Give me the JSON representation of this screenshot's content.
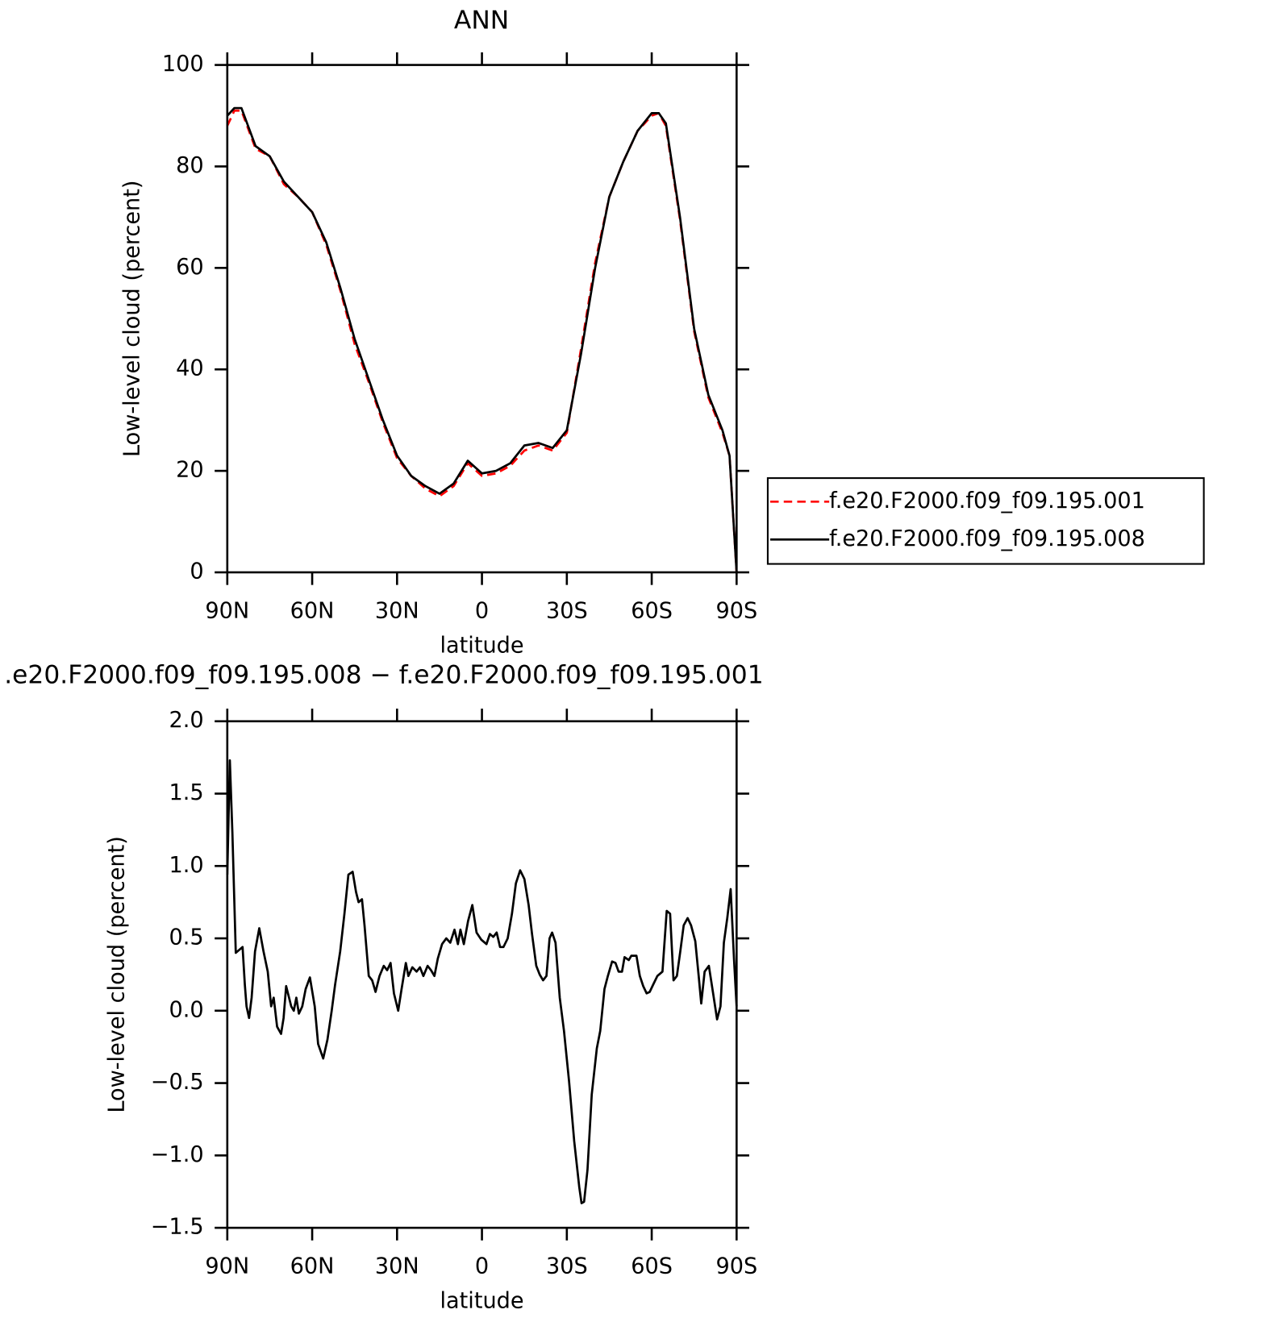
{
  "chart_data": [
    {
      "type": "line",
      "title": "ANN",
      "x_label": "latitude",
      "y_label": "Low-level cloud (percent)",
      "x": [
        90,
        87.5,
        85,
        80,
        75,
        70,
        65,
        60,
        55,
        50,
        45,
        40,
        35,
        30,
        25,
        20,
        15,
        10,
        5,
        0,
        -5,
        -10,
        -15,
        -20,
        -25,
        -30,
        -35,
        -40,
        -45,
        -50,
        -55,
        -60,
        -62.5,
        -65,
        -70,
        -75,
        -80,
        -85,
        -87.5,
        -90
      ],
      "series": [
        {
          "name": "f.e20.F2000.f09_f09.195.001",
          "color": "#ff0000",
          "dash": "dashed",
          "values": [
            88,
            91,
            91,
            83.5,
            82,
            76.5,
            74,
            71,
            64.5,
            55.5,
            45,
            37.5,
            29.5,
            22.5,
            19,
            16.5,
            15,
            17,
            21.5,
            19,
            19.5,
            21,
            24,
            25,
            24,
            27.5,
            44,
            61,
            74,
            81,
            87,
            90,
            90.5,
            88,
            69.5,
            47.5,
            34.5,
            27.5,
            23,
            0
          ]
        },
        {
          "name": "f.e20.F2000.f09_f09.195.008",
          "color": "#000000",
          "dash": "solid",
          "values": [
            90,
            91.5,
            91.5,
            84,
            82,
            77,
            74,
            71,
            65,
            56,
            46,
            38,
            30,
            23,
            19,
            17,
            15.5,
            17.5,
            22,
            19.5,
            20,
            21.5,
            25,
            25.5,
            24.5,
            28,
            43,
            60,
            74,
            81,
            87,
            90.5,
            90.5,
            88.5,
            70,
            48,
            35,
            28,
            23,
            0
          ]
        }
      ],
      "xlim": [
        90,
        -90
      ],
      "xticks": [
        {
          "value": 90,
          "label": "90N"
        },
        {
          "value": 60,
          "label": "60N"
        },
        {
          "value": 30,
          "label": "30N"
        },
        0,
        {
          "value": -30,
          "label": "30S"
        },
        {
          "value": -60,
          "label": "60S"
        },
        {
          "value": -90,
          "label": "90S"
        }
      ],
      "ylim": [
        0,
        100
      ],
      "yticks": [
        0,
        20,
        40,
        60,
        80,
        100
      ],
      "legend": "right"
    },
    {
      "type": "line",
      "title": ".e20.F2000.f09_f09.195.008 − f.e20.F2000.f09_f09.195.001",
      "x_label": "latitude",
      "y_label": "Low-level cloud (percent)",
      "x": [
        90,
        89.1,
        88.2,
        87.0,
        85.8,
        84.6,
        83.8,
        83.2,
        82.3,
        81.4,
        80.2,
        78.7,
        77.2,
        75.7,
        74.5,
        73.6,
        72.4,
        71.0,
        70.1,
        69.2,
        67.4,
        66.5,
        65.6,
        64.7,
        63.5,
        62.3,
        60.8,
        59.1,
        57.9,
        56.1,
        54.6,
        53.1,
        51.9,
        50.1,
        48.6,
        47.2,
        45.7,
        44.5,
        43.6,
        42.4,
        41.5,
        40.0,
        38.8,
        37.6,
        36.2,
        34.7,
        33.5,
        32.3,
        31.1,
        29.6,
        28.4,
        26.9,
        26.0,
        24.6,
        23.1,
        21.9,
        20.7,
        19.2,
        18.0,
        16.8,
        15.6,
        14.1,
        12.6,
        11.2,
        9.7,
        8.5,
        7.6,
        6.4,
        4.9,
        3.4,
        1.9,
        0.2,
        -1.6,
        -2.8,
        -4.0,
        -5.2,
        -6.4,
        -7.6,
        -9.1,
        -10.6,
        -12.0,
        -13.5,
        -15.0,
        -16.5,
        -17.7,
        -19.2,
        -20.4,
        -21.6,
        -22.8,
        -23.9,
        -24.8,
        -26.0,
        -27.5,
        -29.0,
        -30.8,
        -32.6,
        -34.4,
        -35.2,
        -36.1,
        -37.3,
        -38.8,
        -40.6,
        -41.8,
        -43.3,
        -44.5,
        -46.0,
        -47.2,
        -48.3,
        -49.5,
        -50.4,
        -51.9,
        -52.8,
        -54.6,
        -55.8,
        -57.0,
        -58.2,
        -59.3,
        -60.5,
        -62.0,
        -63.8,
        -65.3,
        -66.5,
        -67.7,
        -68.9,
        -70.1,
        -71.3,
        -72.7,
        -73.9,
        -75.4,
        -76.6,
        -77.5,
        -78.7,
        -80.2,
        -81.7,
        -83.1,
        -84.3,
        -85.5,
        -86.7,
        -87.9,
        -89.1,
        -90
      ],
      "series": [
        {
          "color": "#000000",
          "dash": "solid",
          "values": [
            0.94,
            1.73,
            1.23,
            0.4,
            0.42,
            0.44,
            0.18,
            0.03,
            -0.05,
            0.09,
            0.41,
            0.57,
            0.41,
            0.27,
            0.03,
            0.09,
            -0.11,
            -0.16,
            -0.05,
            0.17,
            0.03,
            0,
            0.09,
            -0.02,
            0.03,
            0.15,
            0.23,
            0.03,
            -0.23,
            -0.33,
            -0.2,
            0,
            0.18,
            0.41,
            0.67,
            0.94,
            0.96,
            0.82,
            0.75,
            0.77,
            0.59,
            0.24,
            0.21,
            0.13,
            0.24,
            0.31,
            0.28,
            0.33,
            0.12,
            0,
            0.15,
            0.33,
            0.24,
            0.3,
            0.27,
            0.3,
            0.24,
            0.31,
            0.28,
            0.24,
            0.36,
            0.46,
            0.5,
            0.47,
            0.56,
            0.46,
            0.56,
            0.46,
            0.62,
            0.73,
            0.54,
            0.49,
            0.46,
            0.53,
            0.51,
            0.54,
            0.44,
            0.44,
            0.5,
            0.67,
            0.88,
            0.97,
            0.91,
            0.73,
            0.53,
            0.31,
            0.25,
            0.21,
            0.24,
            0.5,
            0.54,
            0.47,
            0.09,
            -0.14,
            -0.49,
            -0.9,
            -1.22,
            -1.33,
            -1.32,
            -1.1,
            -0.58,
            -0.26,
            -0.14,
            0.15,
            0.24,
            0.34,
            0.33,
            0.27,
            0.27,
            0.37,
            0.35,
            0.38,
            0.38,
            0.24,
            0.17,
            0.12,
            0.13,
            0.18,
            0.24,
            0.27,
            0.69,
            0.67,
            0.21,
            0.24,
            0.41,
            0.59,
            0.64,
            0.59,
            0.48,
            0.24,
            0.05,
            0.27,
            0.31,
            0.12,
            -0.06,
            0.03,
            0.47,
            0.64,
            0.84,
            0.35,
            0.03
          ]
        }
      ],
      "xlim": [
        90,
        -90
      ],
      "xticks": [
        {
          "value": 90,
          "label": "90N"
        },
        {
          "value": 60,
          "label": "60N"
        },
        {
          "value": 30,
          "label": "30N"
        },
        0,
        {
          "value": -30,
          "label": "30S"
        },
        {
          "value": -60,
          "label": "60S"
        },
        {
          "value": -90,
          "label": "90S"
        }
      ],
      "ylim": [
        -1.5,
        2.0
      ],
      "yticks": [
        {
          "value": -1.5,
          "label": "−1.5"
        },
        {
          "value": -1.0,
          "label": "−1.0"
        },
        {
          "value": -0.5,
          "label": "−0.5"
        },
        {
          "value": 0,
          "label": "0.0"
        },
        {
          "value": 0.5,
          "label": "0.5"
        },
        {
          "value": 1.0,
          "label": "1.0"
        },
        {
          "value": 1.5,
          "label": "1.5"
        },
        {
          "value": 2.0,
          "label": "2.0"
        }
      ]
    }
  ]
}
